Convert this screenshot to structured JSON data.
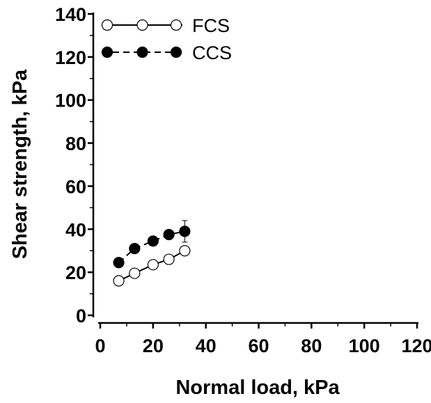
{
  "chart_data": {
    "type": "line",
    "xlabel": "Normal load, kPa",
    "ylabel": "Shear strength, kPa",
    "xlim": [
      0,
      120
    ],
    "ylim": [
      0,
      140
    ],
    "xticks": [
      "0",
      "20",
      "40",
      "60",
      "80",
      "100",
      "120"
    ],
    "yticks": [
      "0",
      "20",
      "40",
      "60",
      "80",
      "100",
      "120",
      "140"
    ],
    "grid": false,
    "legend": "top-left",
    "series": [
      {
        "name": "FCS",
        "marker": "open-circle",
        "line": "solid",
        "x": [
          7,
          13,
          20,
          26,
          32
        ],
        "y": [
          16,
          19.5,
          23.5,
          26,
          30
        ],
        "error": [
          0.8,
          0.8,
          0.8,
          0.8,
          1.0
        ]
      },
      {
        "name": "CCS",
        "marker": "filled-circle",
        "line": "dashed",
        "x": [
          7,
          13,
          20,
          26,
          32
        ],
        "y": [
          24.5,
          31,
          34.5,
          37.5,
          39
        ],
        "error": [
          0.8,
          0.8,
          0.8,
          1.2,
          5
        ]
      }
    ]
  }
}
